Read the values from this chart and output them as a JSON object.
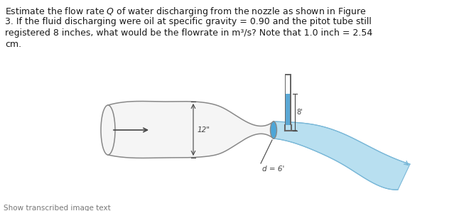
{
  "text_lines": [
    "Estimate the flow rate $Q$ of water discharging from the nozzle as shown in Figure",
    "3. If the fluid discharging were oil at specific gravity = 0.90 and the pitot tube still",
    "registered 8 inches, what would be the flowrate in m³/s? Note that 1.0 inch = 2.54",
    "cm."
  ],
  "footer_text": "Show transcribed image text",
  "label_12": "12\"",
  "label_d6": "d = 6'",
  "label_8": "8'",
  "bg_color": "#ffffff",
  "pipe_fill": "#f5f5f5",
  "pipe_edge_color": "#888888",
  "nozzle_fill": "#4da6d8",
  "water_fill": "#b8dff0",
  "water_edge": "#7ab8d8",
  "pitot_fill": "#f8f8f8",
  "pitot_water": "#5ba8d5",
  "pitot_edge": "#666666",
  "text_color": "#1a1a1a",
  "dim_color": "#444444",
  "arrow_color": "#444444",
  "fig_width": 6.46,
  "fig_height": 2.97,
  "dpi": 100
}
